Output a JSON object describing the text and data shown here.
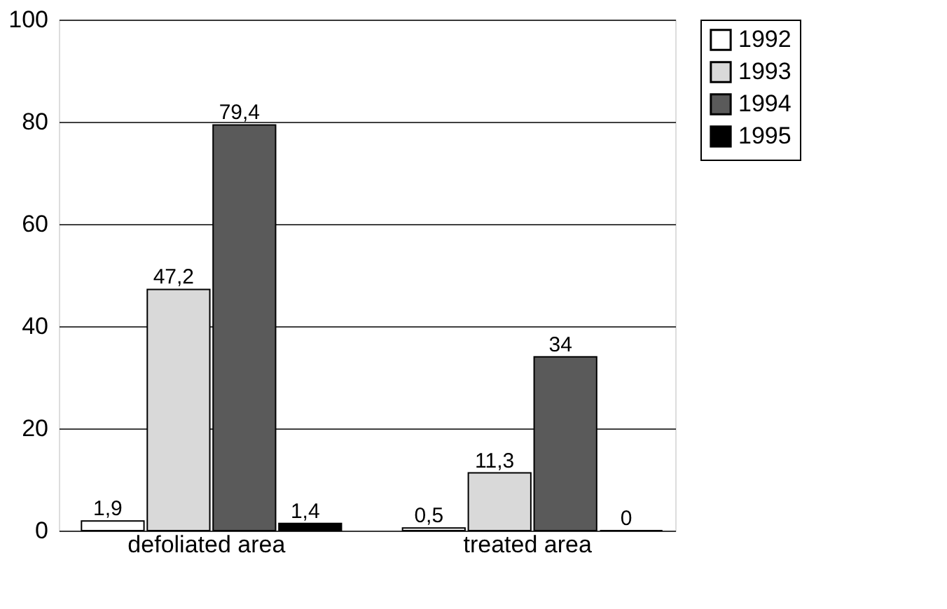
{
  "chart_data": {
    "type": "bar",
    "categories": [
      "defoliated area",
      "treated area"
    ],
    "series": [
      {
        "name": "1992",
        "color": "#ffffff",
        "values": [
          1.9,
          0.5
        ],
        "value_labels": [
          "1,9",
          "0,5"
        ]
      },
      {
        "name": "1993",
        "color": "#d9d9d9",
        "values": [
          47.2,
          11.3
        ],
        "value_labels": [
          "47,2",
          "11,3"
        ]
      },
      {
        "name": "1994",
        "color": "#5a5a5a",
        "values": [
          79.4,
          34
        ],
        "value_labels": [
          "79,4",
          "34"
        ]
      },
      {
        "name": "1995",
        "color": "#000000",
        "values": [
          1.4,
          0
        ],
        "value_labels": [
          "1,4",
          "0"
        ]
      }
    ],
    "ylim": [
      0,
      100
    ],
    "yticks": [
      0,
      20,
      40,
      60,
      80,
      100
    ],
    "grid": "y",
    "legend": "top right"
  }
}
